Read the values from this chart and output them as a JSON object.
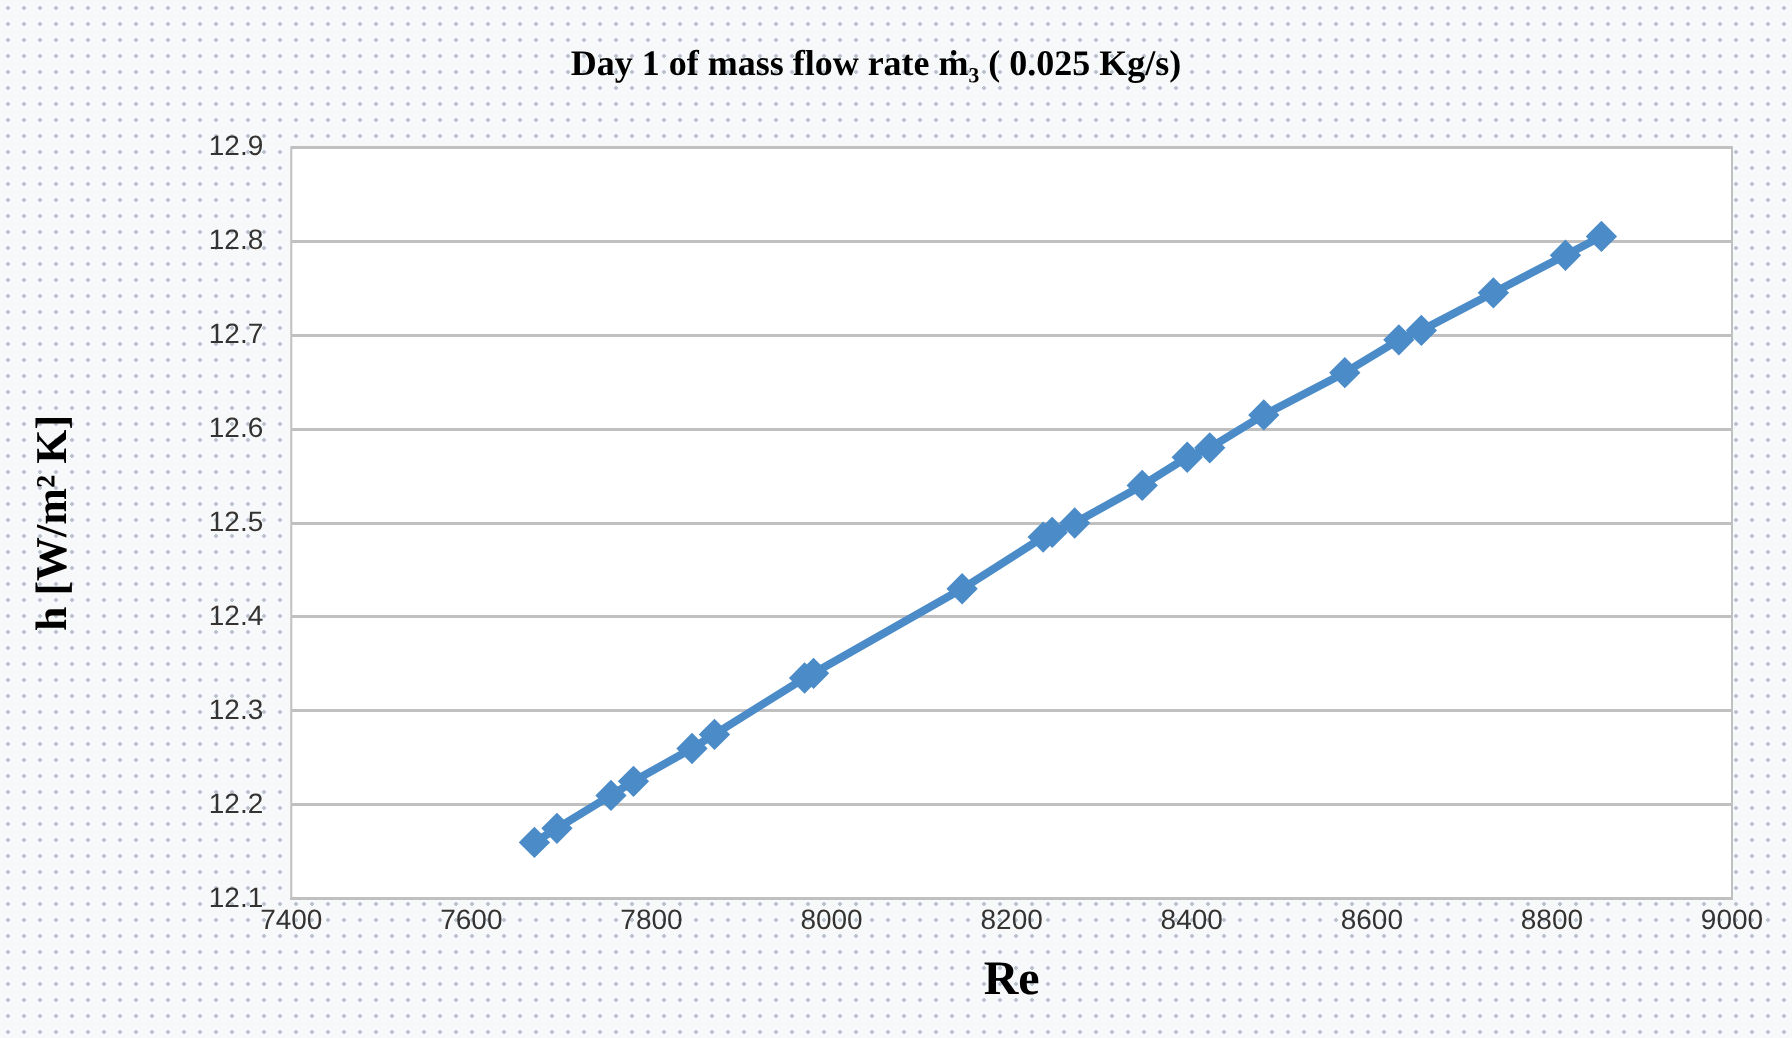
{
  "chart_data": {
    "type": "line",
    "title": "Day 1 of mass flow rate ṁ₃ ( 0.025 Kg/s)",
    "xlabel": "Re",
    "ylabel": "h [W/m² K]",
    "x": [
      7670,
      7695,
      7755,
      7780,
      7845,
      7870,
      7970,
      7980,
      8145,
      8235,
      8245,
      8270,
      8345,
      8395,
      8420,
      8480,
      8570,
      8630,
      8655,
      8735,
      8815,
      8855
    ],
    "series": [
      {
        "color": "#4a8bc8",
        "values": [
          12.16,
          12.175,
          12.21,
          12.225,
          12.26,
          12.275,
          12.335,
          12.34,
          12.43,
          12.485,
          12.49,
          12.5,
          12.54,
          12.57,
          12.58,
          12.615,
          12.66,
          12.695,
          12.705,
          12.745,
          12.785,
          12.805
        ]
      }
    ],
    "xlim": [
      7400,
      9000
    ],
    "xticks": [
      7400,
      7600,
      7800,
      8000,
      8200,
      8400,
      8600,
      8800,
      9000
    ],
    "ylim": [
      12.1,
      12.9
    ],
    "yticks": [
      12.1,
      12.2,
      12.3,
      12.4,
      12.5,
      12.6,
      12.7,
      12.8,
      12.9
    ],
    "grid": "y",
    "legend": false,
    "marker": "diamond",
    "line_style": "solid"
  }
}
